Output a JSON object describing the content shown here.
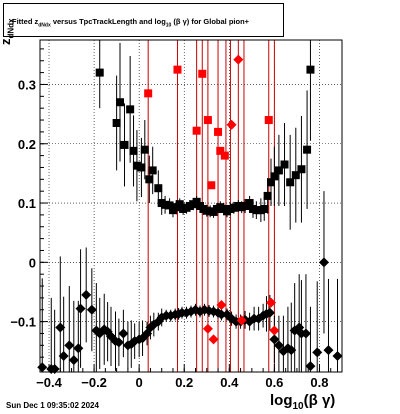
{
  "title": "Fitted  z_dNdx  versus TpcTrackLength and log10 (β γ) for Global pion+",
  "title_parts": {
    "pre": "Fitted  z",
    "sub": "dNdx",
    "mid": "  versus TpcTrackLength and log",
    "sub2": "10",
    "post": " (β γ) for Global pion+"
  },
  "timestamp": "Sun Dec  1 09:35:02 2024",
  "xlabel_parts": {
    "pre": "log",
    "sub": "10",
    "post": "(β γ)"
  },
  "ylabel_parts": {
    "pre": "z",
    "sub": "dNdx"
  },
  "chart_data": {
    "type": "scatter",
    "xlim": [
      -0.44,
      0.9
    ],
    "ylim": [
      -0.185,
      0.375
    ],
    "x_ticks": [
      -0.4,
      -0.2,
      0,
      0.2,
      0.4,
      0.6,
      0.8
    ],
    "x_tick_labels": [
      "−0.4",
      "−0.2",
      "0",
      "0.2",
      "0.4",
      "0.6",
      "0.8"
    ],
    "y_ticks": [
      -0.1,
      0,
      0.1,
      0.2,
      0.3
    ],
    "y_tick_labels": [
      "−0.1",
      "0",
      "0.1",
      "0.2",
      "0.3"
    ],
    "grid": true,
    "vertical_lines": [
      0.04,
      0.17,
      0.255,
      0.28,
      0.305,
      0.35,
      0.385,
      0.405,
      0.44,
      0.465,
      0.575,
      0.6
    ],
    "vertical_line_color": "#cc0000",
    "series": [
      {
        "marker": "square",
        "color": "#000000",
        "points": [
          [
            -0.175,
            0.32,
            0.06
          ],
          [
            -0.1,
            0.235,
            0.08
          ],
          [
            -0.085,
            0.27,
            0.1
          ],
          [
            -0.065,
            0.198,
            0.07
          ],
          [
            -0.04,
            0.258,
            0.09
          ],
          [
            -0.025,
            0.188,
            0.06
          ],
          [
            -0.01,
            0.163,
            0.06
          ],
          [
            0.01,
            0.16,
            0.05
          ],
          [
            0.025,
            0.19,
            0.05
          ],
          [
            0.045,
            0.14,
            0.04
          ],
          [
            0.06,
            0.155,
            0.04
          ],
          [
            0.085,
            0.125,
            0.03
          ],
          [
            0.1,
            0.1,
            0.02
          ],
          [
            0.115,
            0.097,
            0.015
          ],
          [
            0.135,
            0.096,
            0.012
          ],
          [
            0.15,
            0.088,
            0.012
          ],
          [
            0.165,
            0.093,
            0.012
          ],
          [
            0.18,
            0.098,
            0.01
          ],
          [
            0.195,
            0.09,
            0.01
          ],
          [
            0.21,
            0.092,
            0.01
          ],
          [
            0.225,
            0.095,
            0.01
          ],
          [
            0.24,
            0.098,
            0.01
          ],
          [
            0.255,
            0.102,
            0.01
          ],
          [
            0.27,
            0.095,
            0.01
          ],
          [
            0.285,
            0.09,
            0.01
          ],
          [
            0.3,
            0.087,
            0.01
          ],
          [
            0.315,
            0.086,
            0.01
          ],
          [
            0.33,
            0.085,
            0.01
          ],
          [
            0.345,
            0.09,
            0.01
          ],
          [
            0.36,
            0.093,
            0.01
          ],
          [
            0.375,
            0.09,
            0.01
          ],
          [
            0.39,
            0.086,
            0.01
          ],
          [
            0.405,
            0.09,
            0.01
          ],
          [
            0.42,
            0.092,
            0.01
          ],
          [
            0.44,
            0.095,
            0.01
          ],
          [
            0.455,
            0.093,
            0.01
          ],
          [
            0.47,
            0.095,
            0.012
          ],
          [
            0.49,
            0.1,
            0.012
          ],
          [
            0.505,
            0.09,
            0.015
          ],
          [
            0.52,
            0.088,
            0.015
          ],
          [
            0.54,
            0.088,
            0.02
          ],
          [
            0.555,
            0.09,
            0.02
          ],
          [
            0.57,
            0.112,
            0.03
          ],
          [
            0.585,
            0.135,
            0.04
          ],
          [
            0.6,
            0.145,
            0.05
          ],
          [
            0.62,
            0.155,
            0.06
          ],
          [
            0.645,
            0.165,
            0.07
          ],
          [
            0.67,
            0.135,
            0.08
          ],
          [
            0.695,
            0.147,
            0.08
          ],
          [
            0.72,
            0.157,
            0.09
          ],
          [
            0.745,
            0.19,
            0.1
          ],
          [
            0.76,
            0.325,
            0.12
          ]
        ]
      },
      {
        "marker": "square",
        "color": "#ff0000",
        "points": [
          [
            0.04,
            0.285
          ],
          [
            0.17,
            0.325
          ],
          [
            0.255,
            0.222
          ],
          [
            0.28,
            0.318
          ],
          [
            0.305,
            0.24
          ],
          [
            0.32,
            0.13
          ],
          [
            0.35,
            0.22
          ],
          [
            0.36,
            0.188
          ],
          [
            0.38,
            0.18
          ],
          [
            0.575,
            0.24
          ]
        ]
      },
      {
        "marker": "diamond",
        "color": "#000000",
        "points": [
          [
            -0.43,
            -0.177,
            0.15
          ],
          [
            -0.39,
            -0.18,
            0.12
          ],
          [
            -0.375,
            -0.18,
            0.1
          ],
          [
            -0.35,
            -0.11,
            0.12
          ],
          [
            -0.335,
            -0.158,
            0.1
          ],
          [
            -0.31,
            -0.14,
            0.1
          ],
          [
            -0.29,
            -0.165,
            0.1
          ],
          [
            -0.27,
            -0.145,
            0.08
          ],
          [
            -0.26,
            -0.078,
            0.1
          ],
          [
            -0.235,
            -0.055,
            0.08
          ],
          [
            -0.21,
            -0.08,
            0.07
          ],
          [
            -0.19,
            -0.115,
            0.08
          ],
          [
            -0.175,
            -0.12,
            0.06
          ],
          [
            -0.155,
            -0.113,
            0.06
          ],
          [
            -0.14,
            -0.117,
            0.05
          ],
          [
            -0.125,
            -0.125,
            0.05
          ],
          [
            -0.105,
            -0.133,
            0.05
          ],
          [
            -0.09,
            -0.135,
            0.04
          ],
          [
            -0.07,
            -0.12,
            0.04
          ],
          [
            -0.05,
            -0.14,
            0.04
          ],
          [
            -0.035,
            -0.138,
            0.04
          ],
          [
            -0.02,
            -0.133,
            0.03
          ],
          [
            0.0,
            -0.13,
            0.03
          ],
          [
            0.015,
            -0.128,
            0.03
          ],
          [
            0.035,
            -0.12,
            0.02
          ],
          [
            0.05,
            -0.11,
            0.02
          ],
          [
            0.065,
            -0.105,
            0.02
          ],
          [
            0.085,
            -0.1,
            0.015
          ],
          [
            0.1,
            -0.093,
            0.015
          ],
          [
            0.12,
            -0.09,
            0.01
          ],
          [
            0.14,
            -0.09,
            0.01
          ],
          [
            0.16,
            -0.088,
            0.01
          ],
          [
            0.175,
            -0.087,
            0.01
          ],
          [
            0.19,
            -0.085,
            0.01
          ],
          [
            0.21,
            -0.085,
            0.01
          ],
          [
            0.23,
            -0.083,
            0.01
          ],
          [
            0.25,
            -0.08,
            0.01
          ],
          [
            0.27,
            -0.083,
            0.01
          ],
          [
            0.29,
            -0.08,
            0.01
          ],
          [
            0.31,
            -0.082,
            0.01
          ],
          [
            0.33,
            -0.083,
            0.01
          ],
          [
            0.35,
            -0.085,
            0.01
          ],
          [
            0.365,
            -0.088,
            0.01
          ],
          [
            0.39,
            -0.088,
            0.01
          ],
          [
            0.41,
            -0.095,
            0.012
          ],
          [
            0.43,
            -0.1,
            0.012
          ],
          [
            0.45,
            -0.1,
            0.012
          ],
          [
            0.47,
            -0.097,
            0.015
          ],
          [
            0.49,
            -0.1,
            0.015
          ],
          [
            0.51,
            -0.095,
            0.02
          ],
          [
            0.53,
            -0.095,
            0.02
          ],
          [
            0.55,
            -0.09,
            0.02
          ],
          [
            0.565,
            -0.087,
            0.03
          ],
          [
            0.58,
            -0.085,
            0.03
          ],
          [
            0.6,
            -0.13,
            0.04
          ],
          [
            0.62,
            -0.14,
            0.05
          ],
          [
            0.64,
            -0.15,
            0.06
          ],
          [
            0.66,
            -0.145,
            0.07
          ],
          [
            0.675,
            -0.148,
            0.08
          ],
          [
            0.69,
            -0.115,
            0.08
          ],
          [
            0.71,
            -0.11,
            0.09
          ],
          [
            0.72,
            -0.12,
            0.09
          ],
          [
            0.74,
            -0.12,
            0.1
          ],
          [
            0.76,
            -0.175,
            0.1
          ],
          [
            0.79,
            -0.152,
            0.12
          ],
          [
            0.82,
            0.0,
            0.12
          ],
          [
            0.84,
            -0.148,
            0.12
          ],
          [
            0.88,
            -0.158,
            0.13
          ]
        ]
      },
      {
        "marker": "diamond",
        "color": "#ff0000",
        "points": [
          [
            0.305,
            -0.112
          ],
          [
            0.33,
            -0.13
          ],
          [
            0.365,
            -0.072
          ],
          [
            0.41,
            0.232
          ],
          [
            0.44,
            0.342
          ],
          [
            0.455,
            -0.098
          ],
          [
            0.585,
            -0.068
          ],
          [
            0.6,
            -0.115
          ]
        ]
      }
    ]
  }
}
